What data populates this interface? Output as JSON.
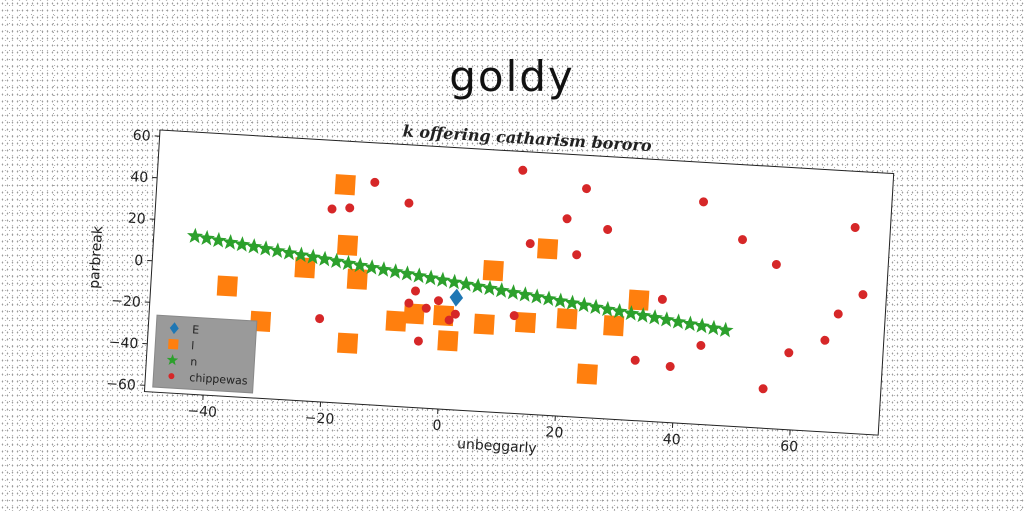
{
  "page": {
    "title": "goldy"
  },
  "chart_data": {
    "type": "scatter",
    "title": "k offering catharism bororo",
    "xlabel": "unbeggarly",
    "ylabel": "parbreak",
    "xlim": [
      -50,
      75
    ],
    "ylim": [
      -63,
      63
    ],
    "x_ticks": [
      -40,
      -20,
      0,
      20,
      40,
      60
    ],
    "y_ticks": [
      -60,
      -40,
      -20,
      0,
      20,
      40,
      60
    ],
    "x_tick_labels": [
      "−40",
      "−20",
      "0",
      "20",
      "40",
      "60"
    ],
    "y_tick_labels": [
      "−60",
      "−40",
      "−20",
      "0",
      "20",
      "40",
      "60"
    ],
    "grid": false,
    "legend_position": "lower-left",
    "series": [
      {
        "name": "E",
        "marker": "diamond",
        "color": "#1f77b4",
        "x": [
          2
        ],
        "y": [
          -9
        ]
      },
      {
        "name": "l",
        "marker": "square",
        "color": "#ff7f0e",
        "x": [
          -18,
          -17,
          -37,
          -31,
          -24,
          -15,
          -16,
          -8,
          -5,
          0,
          1,
          7,
          8,
          14,
          17,
          21,
          25,
          26,
          29,
          33
        ],
        "y": [
          42,
          13,
          -10,
          -26,
          1,
          -3,
          -34,
          -22,
          -18,
          -18,
          -30,
          -21,
          5,
          -19,
          17,
          -16,
          -42,
          -71,
          -18,
          -5
        ]
      },
      {
        "name": "n",
        "marker": "star",
        "color": "#2ca02c",
        "x": [
          -43,
          48
        ],
        "y": [
          13,
          -17
        ]
      },
      {
        "name": "chippewas",
        "marker": "circle",
        "color": "#d62728",
        "x": [
          -20,
          -17,
          -13,
          -7,
          -5,
          -3,
          -6,
          -1,
          1,
          -4,
          2,
          -21,
          12,
          12,
          14,
          20,
          22,
          23,
          27,
          33,
          37,
          39,
          43,
          44,
          50,
          56,
          59,
          65,
          67,
          69,
          71,
          55
        ],
        "y": [
          30,
          31,
          44,
          35,
          -7,
          -15,
          -13,
          -11,
          -20,
          -31,
          -17,
          -23,
          54,
          -16,
          19,
          32,
          15,
          47,
          28,
          -34,
          -4,
          -36,
          44,
          -25,
          27,
          16,
          -26,
          -19,
          -6,
          36,
          4,
          -44
        ]
      }
    ]
  }
}
